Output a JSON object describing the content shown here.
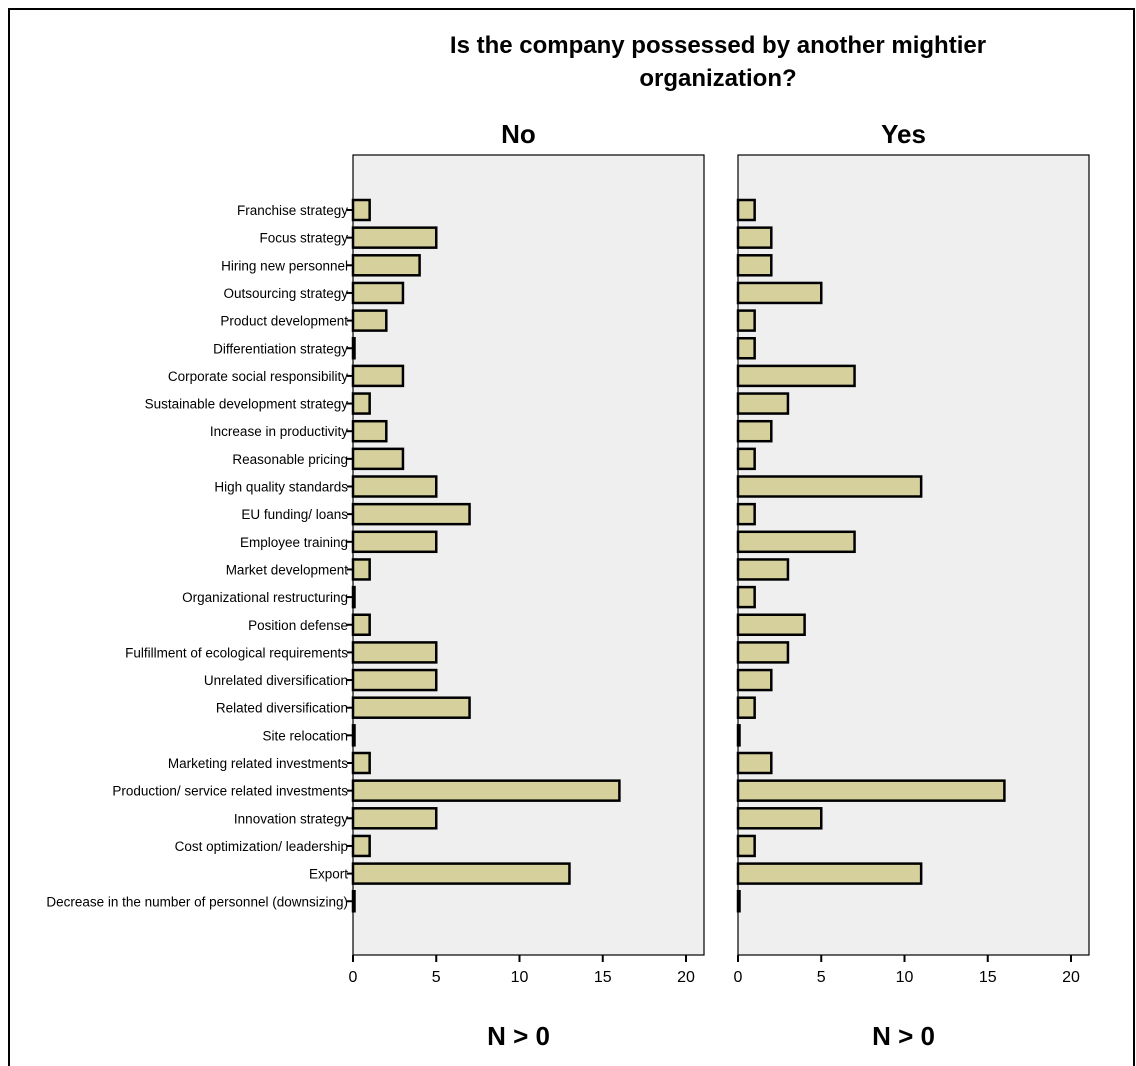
{
  "chart_data": {
    "type": "bar",
    "orientation": "horizontal",
    "title": "Is the company possessed by another mightier organization?",
    "title_lines": [
      "Is the company possessed by another mightier",
      "organization?"
    ],
    "xlabel": "N > 0",
    "xlim": [
      0,
      21
    ],
    "xticks": [
      0,
      5,
      10,
      15,
      20
    ],
    "categories": [
      "Franchise strategy",
      "Focus strategy",
      "Hiring new personnel",
      "Outsourcing strategy",
      "Product development",
      "Differentiation strategy",
      "Corporate social responsibility",
      "Sustainable development strategy",
      "Increase in productivity",
      "Reasonable pricing",
      "High quality standards",
      "EU funding/ loans",
      "Employee training",
      "Market development",
      "Organizational restructuring",
      "Position defense",
      "Fulfillment of ecological requirements",
      "Unrelated diversification",
      "Related diversification",
      "Site relocation",
      "Marketing related investments",
      "Production/ service related investments",
      "Innovation strategy",
      "Cost optimization/ leadership",
      "Export",
      "Decrease in the number of personnel (downsizing)"
    ],
    "panels": [
      {
        "name": "No",
        "values": [
          1,
          5,
          4,
          3,
          2,
          0,
          3,
          1,
          2,
          3,
          5,
          7,
          5,
          1,
          0,
          1,
          5,
          5,
          7,
          0,
          1,
          16,
          5,
          1,
          13,
          0
        ]
      },
      {
        "name": "Yes",
        "values": [
          1,
          2,
          2,
          5,
          1,
          1,
          7,
          3,
          2,
          1,
          11,
          1,
          7,
          3,
          1,
          4,
          3,
          2,
          1,
          0,
          2,
          16,
          5,
          1,
          11,
          0
        ]
      }
    ],
    "colors": {
      "bar_fill": "#d6d09c",
      "panel_bg": "#efefef",
      "bar_stroke": "#000000"
    },
    "grid": false
  }
}
